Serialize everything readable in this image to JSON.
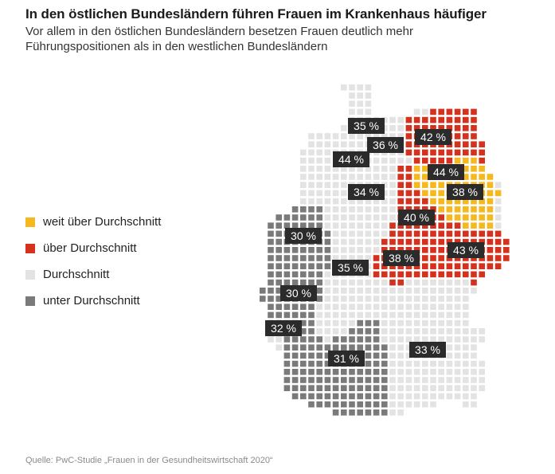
{
  "header": {
    "title": "In den östlichen Bundesländern führen Frauen im Krankenhaus häufiger",
    "subtitle": "Vor allem in den östlichen Bundesländern besetzen Frauen deutlich mehr Führungspositionen als in den westlichen Bundesländern"
  },
  "legend": {
    "items": [
      {
        "label": "weit über Durchschnitt",
        "color": "#f6b81f"
      },
      {
        "label": "über Durchschnitt",
        "color": "#d4321e"
      },
      {
        "label": "Durchschnitt",
        "color": "#e3e3e3"
      },
      {
        "label": "unter Durchschnitt",
        "color": "#7a7a7a"
      }
    ]
  },
  "map": {
    "label_background": "#2b2b2b",
    "label_text_color": "#ffffff",
    "regions": [
      {
        "value": "35 %",
        "category": "Durchschnitt"
      },
      {
        "value": "36 %",
        "category": "Durchschnitt"
      },
      {
        "value": "42 %",
        "category": "über Durchschnitt"
      },
      {
        "value": "44 %",
        "category": "Durchschnitt"
      },
      {
        "value": "44 %",
        "category": "weit über Durchschnitt"
      },
      {
        "value": "38 %",
        "category": "weit über Durchschnitt"
      },
      {
        "value": "34 %",
        "category": "Durchschnitt"
      },
      {
        "value": "40 %",
        "category": "über Durchschnitt"
      },
      {
        "value": "30 %",
        "category": "unter Durchschnitt"
      },
      {
        "value": "43 %",
        "category": "über Durchschnitt"
      },
      {
        "value": "38 %",
        "category": "über Durchschnitt"
      },
      {
        "value": "35 %",
        "category": "Durchschnitt"
      },
      {
        "value": "30 %",
        "category": "unter Durchschnitt"
      },
      {
        "value": "32 %",
        "category": "unter Durchschnitt"
      },
      {
        "value": "33 %",
        "category": "Durchschnitt"
      },
      {
        "value": "31 %",
        "category": "unter Durchschnitt"
      }
    ]
  },
  "source": "Quelle: PwC-Studie „Frauen in der Gesundheitswirtschaft 2020“"
}
